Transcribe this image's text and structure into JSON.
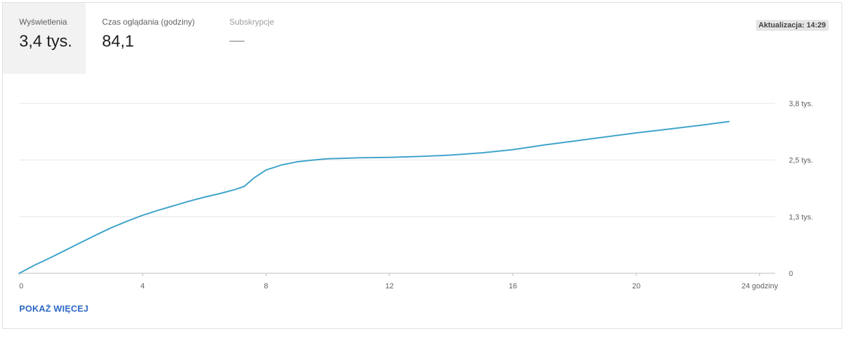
{
  "metrics": [
    {
      "label": "Wyświetlenia",
      "value": "3,4 tys."
    },
    {
      "label": "Czas oglądania (godziny)",
      "value": "84,1"
    },
    {
      "label": "Subskrypcje",
      "value": "—"
    }
  ],
  "update_badge": "Aktualizacja: 14:29",
  "show_more": "POKAŻ WIĘCEJ",
  "colors": {
    "line": "#3ea3c9",
    "grid": "#e6e6e6",
    "link": "#2d68c4"
  },
  "chart_data": {
    "type": "line",
    "title": "",
    "xlabel": "",
    "ylabel": "",
    "x_tick_labels": [
      "0",
      "4",
      "8",
      "12",
      "16",
      "20",
      "24 godziny"
    ],
    "x_ticks": [
      0,
      4,
      8,
      12,
      16,
      20,
      24
    ],
    "y_tick_labels": [
      "0",
      "1,3 tys.",
      "2,5 tys.",
      "3,8 tys."
    ],
    "y_ticks": [
      0,
      1250,
      2500,
      3750
    ],
    "xlim": [
      0,
      24.5
    ],
    "ylim": [
      0,
      3750
    ],
    "grid": true,
    "series": [
      {
        "x": [
          0,
          0.5,
          1,
          1.5,
          2,
          2.5,
          3,
          3.5,
          4,
          4.5,
          5,
          5.5,
          6,
          6.5,
          7,
          7.3,
          7.6,
          8,
          8.5,
          9,
          9.5,
          10,
          11,
          12,
          13,
          14,
          15,
          16,
          17,
          18,
          19,
          20,
          21,
          22,
          23
        ],
        "values": [
          0,
          180,
          340,
          510,
          680,
          850,
          1010,
          1150,
          1280,
          1390,
          1490,
          1590,
          1680,
          1760,
          1850,
          1920,
          2100,
          2280,
          2390,
          2460,
          2500,
          2530,
          2550,
          2560,
          2580,
          2610,
          2660,
          2730,
          2830,
          2920,
          3010,
          3100,
          3180,
          3260,
          3350
        ]
      }
    ]
  }
}
